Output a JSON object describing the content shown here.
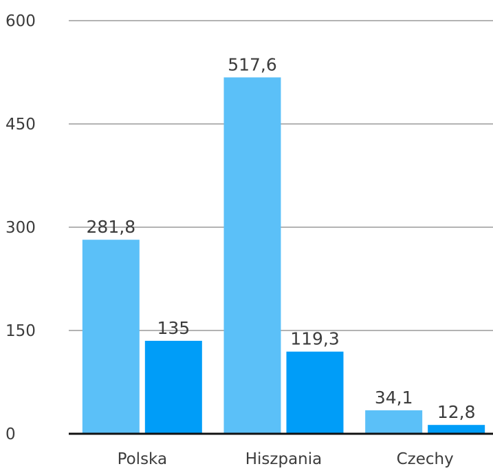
{
  "chart_data": {
    "type": "bar",
    "title": "",
    "xlabel": "",
    "ylabel": "",
    "categories": [
      "Polska",
      "Hiszpania",
      "Czechy"
    ],
    "series": [
      {
        "values": [
          281.8,
          517.6,
          34.1
        ],
        "labels": [
          "281,8",
          "517,6",
          "34,1"
        ],
        "color": "#5bc0f8"
      },
      {
        "values": [
          135,
          119.3,
          12.8
        ],
        "labels": [
          "135",
          "119,3",
          "12,8"
        ],
        "color": "#009df8"
      }
    ],
    "ylim": [
      0,
      600
    ],
    "yticks": [
      0,
      150,
      300,
      450,
      600
    ],
    "ytick_labels": [
      "0",
      "150",
      "300",
      "450",
      "600"
    ],
    "grid": true,
    "legend": "none"
  }
}
